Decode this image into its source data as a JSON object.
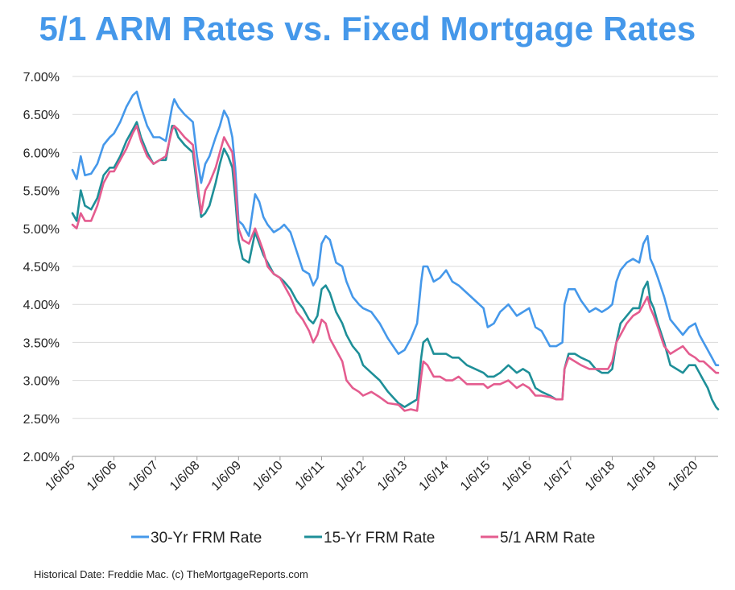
{
  "chart_data": {
    "type": "line",
    "title": "5/1 ARM Rates vs. Fixed Mortgage Rates",
    "source": "Historical Date: Freddie Mac. (c) TheMortgageReports.com",
    "ylim": [
      2.0,
      7.0
    ],
    "y_ticks": [
      "7.00%",
      "6.50%",
      "6.00%",
      "5.50%",
      "5.00%",
      "4.50%",
      "4.00%",
      "3.50%",
      "3.00%",
      "2.50%",
      "2.00%"
    ],
    "y_tick_values": [
      7.0,
      6.5,
      6.0,
      5.5,
      5.0,
      4.5,
      4.0,
      3.5,
      3.0,
      2.5,
      2.0
    ],
    "x_ticks": [
      "1/6/05",
      "1/6/06",
      "1/6/07",
      "1/6/08",
      "1/6/09",
      "1/6/10",
      "1/6/11",
      "1/6/12",
      "1/6/13",
      "1/6/14",
      "1/6/15",
      "1/6/16",
      "1/6/17",
      "1/6/18",
      "1/6/19",
      "1/6/20"
    ],
    "xlim": [
      2005.0,
      2020.55
    ],
    "grid": "horizontal",
    "legend": "bottom",
    "series": [
      {
        "name": "30-Yr FRM Rate",
        "color": "#4598ea",
        "x": [
          2005.0,
          2005.1,
          2005.2,
          2005.3,
          2005.45,
          2005.6,
          2005.75,
          2005.9,
          2006.0,
          2006.15,
          2006.3,
          2006.45,
          2006.55,
          2006.65,
          2006.8,
          2006.95,
          2007.1,
          2007.25,
          2007.4,
          2007.45,
          2007.55,
          2007.7,
          2007.9,
          2008.0,
          2008.1,
          2008.2,
          2008.3,
          2008.45,
          2008.55,
          2008.65,
          2008.75,
          2008.85,
          2008.92,
          2009.0,
          2009.1,
          2009.25,
          2009.4,
          2009.5,
          2009.6,
          2009.7,
          2009.85,
          2010.0,
          2010.1,
          2010.25,
          2010.4,
          2010.55,
          2010.7,
          2010.8,
          2010.9,
          2011.0,
          2011.1,
          2011.2,
          2011.35,
          2011.5,
          2011.6,
          2011.75,
          2011.9,
          2012.0,
          2012.2,
          2012.4,
          2012.6,
          2012.85,
          2013.0,
          2013.15,
          2013.3,
          2013.4,
          2013.45,
          2013.55,
          2013.7,
          2013.85,
          2014.0,
          2014.15,
          2014.3,
          2014.5,
          2014.7,
          2014.9,
          2015.0,
          2015.15,
          2015.3,
          2015.5,
          2015.7,
          2015.85,
          2016.0,
          2016.15,
          2016.3,
          2016.5,
          2016.65,
          2016.8,
          2016.85,
          2016.95,
          2017.1,
          2017.25,
          2017.45,
          2017.6,
          2017.75,
          2017.9,
          2018.0,
          2018.1,
          2018.2,
          2018.35,
          2018.5,
          2018.65,
          2018.75,
          2018.85,
          2018.92,
          2019.0,
          2019.1,
          2019.25,
          2019.4,
          2019.55,
          2019.7,
          2019.85,
          2020.0,
          2020.1,
          2020.2,
          2020.3,
          2020.4,
          2020.5,
          2020.55
        ],
        "values": [
          5.77,
          5.65,
          5.95,
          5.7,
          5.72,
          5.85,
          6.1,
          6.2,
          6.25,
          6.4,
          6.6,
          6.75,
          6.8,
          6.6,
          6.35,
          6.2,
          6.2,
          6.15,
          6.6,
          6.7,
          6.6,
          6.5,
          6.4,
          5.95,
          5.6,
          5.85,
          5.95,
          6.2,
          6.35,
          6.55,
          6.45,
          6.2,
          5.8,
          5.1,
          5.05,
          4.9,
          5.45,
          5.35,
          5.15,
          5.05,
          4.95,
          5.0,
          5.05,
          4.95,
          4.7,
          4.45,
          4.4,
          4.25,
          4.35,
          4.8,
          4.9,
          4.85,
          4.55,
          4.5,
          4.3,
          4.1,
          4.0,
          3.95,
          3.9,
          3.75,
          3.55,
          3.35,
          3.4,
          3.55,
          3.75,
          4.3,
          4.5,
          4.5,
          4.3,
          4.35,
          4.45,
          4.3,
          4.25,
          4.15,
          4.05,
          3.95,
          3.7,
          3.75,
          3.9,
          4.0,
          3.85,
          3.9,
          3.95,
          3.7,
          3.65,
          3.45,
          3.45,
          3.5,
          4.0,
          4.2,
          4.2,
          4.05,
          3.9,
          3.95,
          3.9,
          3.95,
          4.0,
          4.3,
          4.45,
          4.55,
          4.6,
          4.55,
          4.8,
          4.9,
          4.6,
          4.5,
          4.35,
          4.1,
          3.8,
          3.7,
          3.6,
          3.7,
          3.75,
          3.6,
          3.5,
          3.4,
          3.3,
          3.2,
          3.2
        ]
      },
      {
        "name": "15-Yr FRM Rate",
        "color": "#1e8f98",
        "x": [
          2005.0,
          2005.1,
          2005.2,
          2005.3,
          2005.45,
          2005.6,
          2005.75,
          2005.9,
          2006.0,
          2006.15,
          2006.3,
          2006.45,
          2006.55,
          2006.65,
          2006.8,
          2006.95,
          2007.1,
          2007.25,
          2007.4,
          2007.45,
          2007.55,
          2007.7,
          2007.9,
          2008.0,
          2008.1,
          2008.2,
          2008.3,
          2008.45,
          2008.55,
          2008.65,
          2008.75,
          2008.85,
          2008.92,
          2009.0,
          2009.1,
          2009.25,
          2009.4,
          2009.5,
          2009.6,
          2009.7,
          2009.85,
          2010.0,
          2010.1,
          2010.25,
          2010.4,
          2010.55,
          2010.7,
          2010.8,
          2010.9,
          2011.0,
          2011.1,
          2011.2,
          2011.35,
          2011.5,
          2011.6,
          2011.75,
          2011.9,
          2012.0,
          2012.2,
          2012.4,
          2012.6,
          2012.85,
          2013.0,
          2013.15,
          2013.3,
          2013.4,
          2013.45,
          2013.55,
          2013.7,
          2013.85,
          2014.0,
          2014.15,
          2014.3,
          2014.5,
          2014.7,
          2014.9,
          2015.0,
          2015.15,
          2015.3,
          2015.5,
          2015.7,
          2015.85,
          2016.0,
          2016.15,
          2016.3,
          2016.5,
          2016.65,
          2016.8,
          2016.85,
          2016.95,
          2017.1,
          2017.25,
          2017.45,
          2017.6,
          2017.75,
          2017.9,
          2018.0,
          2018.1,
          2018.2,
          2018.35,
          2018.5,
          2018.65,
          2018.75,
          2018.85,
          2018.92,
          2019.0,
          2019.1,
          2019.25,
          2019.4,
          2019.55,
          2019.7,
          2019.85,
          2020.0,
          2020.1,
          2020.2,
          2020.3,
          2020.4,
          2020.5,
          2020.55
        ],
        "values": [
          5.2,
          5.1,
          5.5,
          5.3,
          5.25,
          5.4,
          5.7,
          5.8,
          5.8,
          5.95,
          6.15,
          6.3,
          6.4,
          6.2,
          6.0,
          5.85,
          5.9,
          5.9,
          6.35,
          6.35,
          6.2,
          6.1,
          6.0,
          5.55,
          5.15,
          5.2,
          5.3,
          5.6,
          5.85,
          6.05,
          5.95,
          5.8,
          5.4,
          4.85,
          4.6,
          4.55,
          4.95,
          4.8,
          4.65,
          4.55,
          4.4,
          4.35,
          4.3,
          4.2,
          4.05,
          3.95,
          3.8,
          3.75,
          3.85,
          4.2,
          4.25,
          4.15,
          3.9,
          3.75,
          3.6,
          3.45,
          3.35,
          3.2,
          3.1,
          3.0,
          2.85,
          2.7,
          2.65,
          2.7,
          2.75,
          3.3,
          3.5,
          3.55,
          3.35,
          3.35,
          3.35,
          3.3,
          3.3,
          3.2,
          3.15,
          3.1,
          3.05,
          3.05,
          3.1,
          3.2,
          3.1,
          3.15,
          3.1,
          2.9,
          2.85,
          2.8,
          2.75,
          2.75,
          3.15,
          3.35,
          3.35,
          3.3,
          3.25,
          3.15,
          3.1,
          3.1,
          3.15,
          3.5,
          3.75,
          3.85,
          3.95,
          3.95,
          4.2,
          4.3,
          4.05,
          3.95,
          3.75,
          3.5,
          3.2,
          3.15,
          3.1,
          3.2,
          3.2,
          3.1,
          3.0,
          2.9,
          2.75,
          2.65,
          2.62
        ]
      },
      {
        "name": "5/1 ARM Rate",
        "color": "#e45c8f",
        "x": [
          2005.0,
          2005.1,
          2005.2,
          2005.3,
          2005.45,
          2005.6,
          2005.75,
          2005.9,
          2006.0,
          2006.15,
          2006.3,
          2006.45,
          2006.55,
          2006.65,
          2006.8,
          2006.95,
          2007.1,
          2007.25,
          2007.4,
          2007.45,
          2007.55,
          2007.7,
          2007.9,
          2008.0,
          2008.1,
          2008.2,
          2008.3,
          2008.45,
          2008.55,
          2008.65,
          2008.75,
          2008.85,
          2008.92,
          2009.0,
          2009.1,
          2009.25,
          2009.4,
          2009.5,
          2009.6,
          2009.7,
          2009.85,
          2010.0,
          2010.1,
          2010.25,
          2010.4,
          2010.55,
          2010.7,
          2010.8,
          2010.9,
          2011.0,
          2011.1,
          2011.2,
          2011.35,
          2011.5,
          2011.6,
          2011.75,
          2011.9,
          2012.0,
          2012.2,
          2012.4,
          2012.6,
          2012.85,
          2013.0,
          2013.15,
          2013.3,
          2013.4,
          2013.45,
          2013.55,
          2013.7,
          2013.85,
          2014.0,
          2014.15,
          2014.3,
          2014.5,
          2014.7,
          2014.9,
          2015.0,
          2015.15,
          2015.3,
          2015.5,
          2015.7,
          2015.85,
          2016.0,
          2016.15,
          2016.3,
          2016.5,
          2016.65,
          2016.8,
          2016.85,
          2016.95,
          2017.1,
          2017.25,
          2017.45,
          2017.6,
          2017.75,
          2017.9,
          2018.0,
          2018.1,
          2018.2,
          2018.35,
          2018.5,
          2018.65,
          2018.75,
          2018.85,
          2018.92,
          2019.0,
          2019.1,
          2019.25,
          2019.4,
          2019.55,
          2019.7,
          2019.85,
          2020.0,
          2020.1,
          2020.2,
          2020.3,
          2020.4,
          2020.5,
          2020.55
        ],
        "values": [
          5.05,
          5.0,
          5.2,
          5.1,
          5.1,
          5.3,
          5.6,
          5.75,
          5.75,
          5.9,
          6.05,
          6.25,
          6.35,
          6.15,
          5.95,
          5.85,
          5.9,
          5.95,
          6.3,
          6.35,
          6.3,
          6.2,
          6.1,
          5.65,
          5.2,
          5.5,
          5.6,
          5.8,
          6.0,
          6.2,
          6.1,
          6.0,
          5.6,
          5.0,
          4.85,
          4.8,
          5.0,
          4.85,
          4.7,
          4.5,
          4.4,
          4.35,
          4.25,
          4.1,
          3.9,
          3.8,
          3.65,
          3.5,
          3.6,
          3.8,
          3.75,
          3.55,
          3.4,
          3.25,
          3.0,
          2.9,
          2.85,
          2.8,
          2.85,
          2.78,
          2.7,
          2.68,
          2.6,
          2.62,
          2.6,
          3.05,
          3.25,
          3.2,
          3.05,
          3.05,
          3.0,
          3.0,
          3.05,
          2.95,
          2.95,
          2.95,
          2.9,
          2.95,
          2.95,
          3.0,
          2.9,
          2.95,
          2.9,
          2.8,
          2.8,
          2.78,
          2.75,
          2.75,
          3.15,
          3.3,
          3.25,
          3.2,
          3.15,
          3.15,
          3.15,
          3.15,
          3.25,
          3.5,
          3.6,
          3.75,
          3.85,
          3.9,
          4.0,
          4.1,
          3.95,
          3.85,
          3.7,
          3.45,
          3.35,
          3.4,
          3.45,
          3.35,
          3.3,
          3.25,
          3.25,
          3.2,
          3.15,
          3.1,
          3.1
        ]
      }
    ]
  }
}
